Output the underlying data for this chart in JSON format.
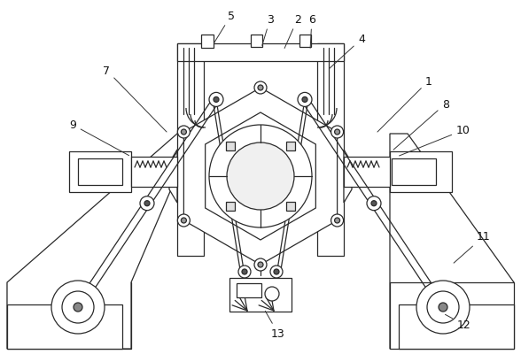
{
  "bg_color": "#ffffff",
  "line_color": "#2a2a2a",
  "lw": 0.9
}
